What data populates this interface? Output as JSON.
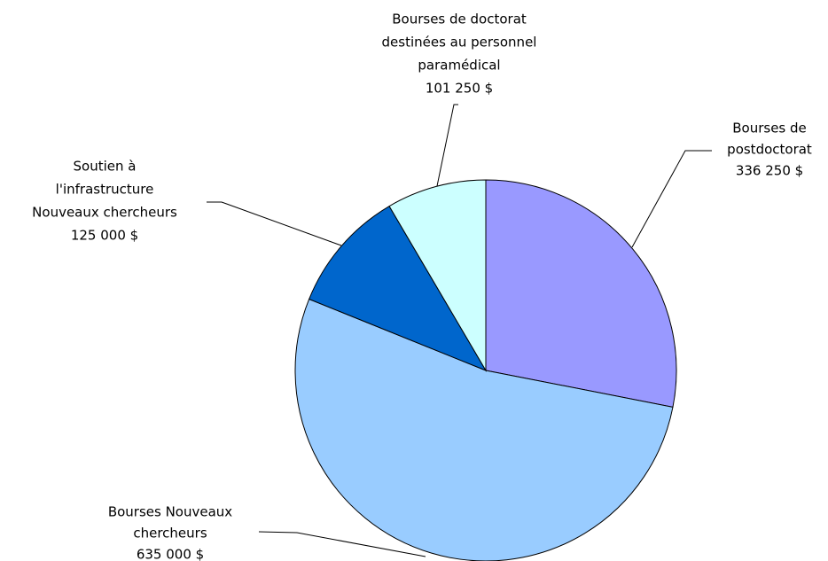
{
  "chart_data": {
    "type": "pie",
    "categories": [
      [
        "Bourses de",
        "postdoctorat"
      ],
      [
        "Bourses Nouveaux",
        "chercheurs"
      ],
      [
        "Soutien à",
        "l'infrastructure",
        "Nouveaux chercheurs"
      ],
      [
        "Bourses de doctorat",
        "destinées au personnel",
        "paramédical"
      ]
    ],
    "values": [
      336250,
      635000,
      125000,
      101250
    ],
    "value_labels": [
      "336 250 $",
      "635 000 $",
      "125 000 $",
      "101 250 $"
    ],
    "colors": [
      "#9999ff",
      "#99ccff",
      "#0066cc",
      "#ccffff"
    ]
  }
}
